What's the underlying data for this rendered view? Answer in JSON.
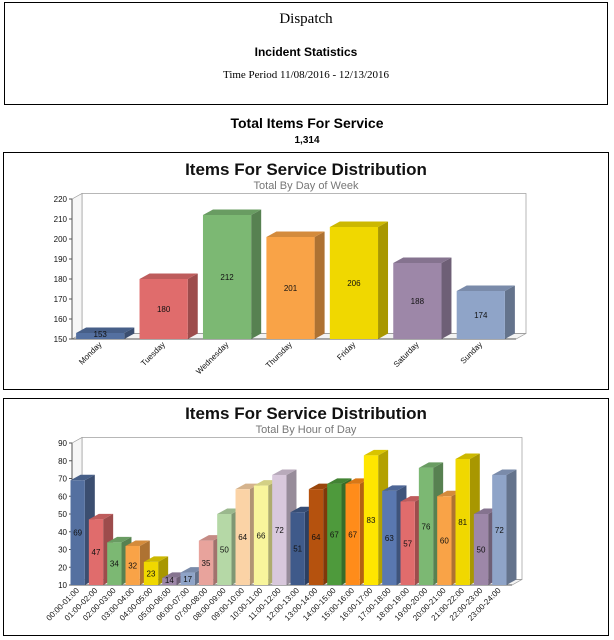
{
  "header": {
    "title": "Dispatch",
    "subtitle": "Incident Statistics",
    "period": "Time Period 11/08/2016 - 12/13/2016"
  },
  "total": {
    "title": "Total Items For Service",
    "value": "1,314"
  },
  "chart_data": [
    {
      "type": "bar",
      "title": "Items For Service Distribution",
      "subtitle": "Total By Day of Week",
      "categories": [
        "Monday",
        "Tuesday",
        "Wednesday",
        "Thursday",
        "Friday",
        "Saturday",
        "Sunday"
      ],
      "values": [
        153,
        180,
        212,
        201,
        206,
        188,
        174
      ],
      "ylim": [
        150,
        220
      ],
      "yticks": [
        150,
        160,
        170,
        180,
        190,
        200,
        210,
        220
      ],
      "colors": [
        "#5470a0",
        "#e06c6c",
        "#7cb873",
        "#f9a347",
        "#f0d800",
        "#9d87a8",
        "#8fa4c8"
      ],
      "grid": false,
      "legend": "none"
    },
    {
      "type": "bar",
      "title": "Items For Service Distribution",
      "subtitle": "Total By Hour of Day",
      "categories": [
        "00:00-01:00",
        "01:00-02:00",
        "02:00-03:00",
        "03:00-04:00",
        "04:00-05:00",
        "05:00-06:00",
        "06:00-07:00",
        "07:00-08:00",
        "08:00-09:00",
        "09:00-10:00",
        "10:00-11:00",
        "11:00-12:00",
        "12:00-13:00",
        "13:00-14:00",
        "14:00-15:00",
        "15:00-16:00",
        "16:00-17:00",
        "17:00-18:00",
        "18:00-19:00",
        "19:00-20:00",
        "20:00-21:00",
        "21:00-22:00",
        "22:00-23:00",
        "23:00-24:00"
      ],
      "values": [
        69,
        47,
        34,
        32,
        23,
        14,
        17,
        35,
        50,
        64,
        66,
        72,
        51,
        64,
        67,
        67,
        83,
        63,
        57,
        76,
        60,
        81,
        50,
        72
      ],
      "ylim": [
        10,
        90
      ],
      "yticks": [
        10,
        20,
        30,
        40,
        50,
        60,
        70,
        80,
        90
      ],
      "colors": [
        "#5470a0",
        "#e06c6c",
        "#7cb873",
        "#f9a347",
        "#f0d800",
        "#9d87a8",
        "#8fa4c8",
        "#e8a39c",
        "#b5d8a6",
        "#fbd3a6",
        "#f8f59c",
        "#d8c8dc",
        "#3f5a8a",
        "#b5520e",
        "#4e9a3c",
        "#ff8c1a",
        "#ffe600",
        "#5a78b0",
        "#e06c6c",
        "#7cb873",
        "#f9a347",
        "#f0d800",
        "#9d87a8",
        "#8fa4c8"
      ],
      "grid": false,
      "legend": "none"
    }
  ]
}
